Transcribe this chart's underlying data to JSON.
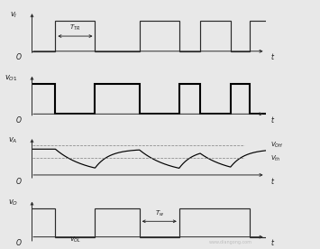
{
  "fig_width": 3.55,
  "fig_height": 2.76,
  "dpi": 100,
  "subplot_labels": [
    "$v_I$",
    "$v_{O1}$",
    "$v_A$",
    "$v_O$"
  ],
  "xmax": 10.0,
  "vOH_label": "$V_{OH}$",
  "vth_label": "$V_{th}$",
  "VOL_label": "$V_{OL}$",
  "TTR_label": "$T_{TR}$",
  "Tw_label": "$T_w$",
  "text_color": "#1a1a1a",
  "line_color_thin": "#2a2a2a",
  "line_color_thick": "#000000",
  "dashed_color": "#888888",
  "bg_color": "#e8e8e8"
}
